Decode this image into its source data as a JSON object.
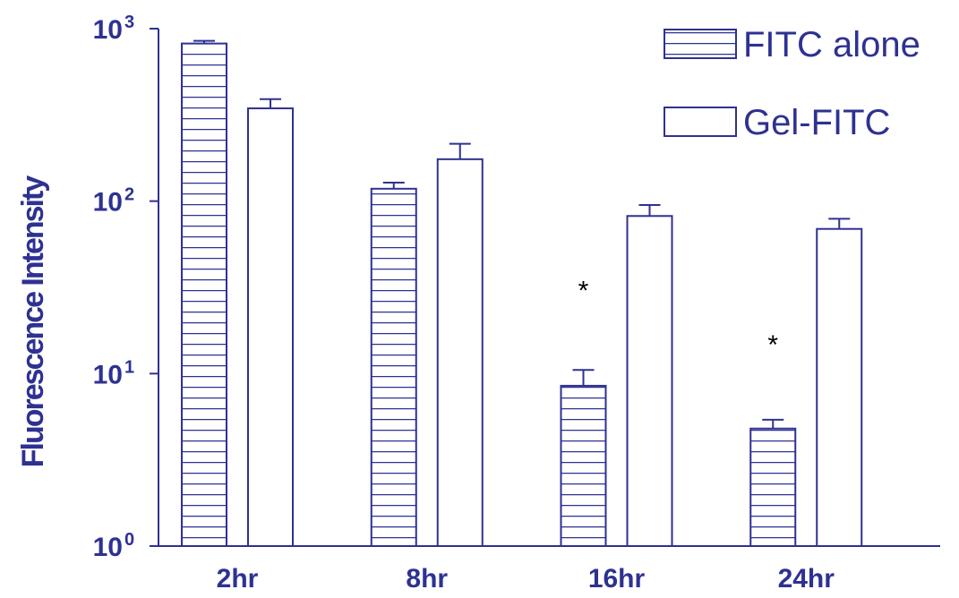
{
  "chart_data": {
    "type": "bar",
    "ylabel": "Fluorescence Intensity",
    "xlabel": "",
    "yscale": "log",
    "ylim": [
      1,
      1000
    ],
    "yticks": [
      {
        "base": "10",
        "exp": "0",
        "value": 1
      },
      {
        "base": "10",
        "exp": "1",
        "value": 10
      },
      {
        "base": "10",
        "exp": "2",
        "value": 100
      },
      {
        "base": "10",
        "exp": "3",
        "value": 1000
      }
    ],
    "categories": [
      "2hr",
      "8hr",
      "16hr",
      "24hr"
    ],
    "series": [
      {
        "name": "FITC alone",
        "pattern": "horizontal-stripes",
        "values": [
          820,
          118,
          8.5,
          4.8
        ],
        "errors": [
          30,
          10,
          2.0,
          0.6
        ]
      },
      {
        "name": "Gel-FITC",
        "pattern": "open",
        "values": [
          345,
          175,
          82,
          69
        ],
        "errors": [
          45,
          40,
          13,
          10
        ]
      }
    ],
    "annotations": [
      {
        "text": "*",
        "category": "16hr",
        "y": 35
      },
      {
        "text": "*",
        "category": "24hr",
        "y": 17
      }
    ],
    "legend_position": "top-right",
    "grid": false,
    "colors": {
      "axis": "#2e3192",
      "text": "#2e3192",
      "star": "#000000"
    }
  }
}
